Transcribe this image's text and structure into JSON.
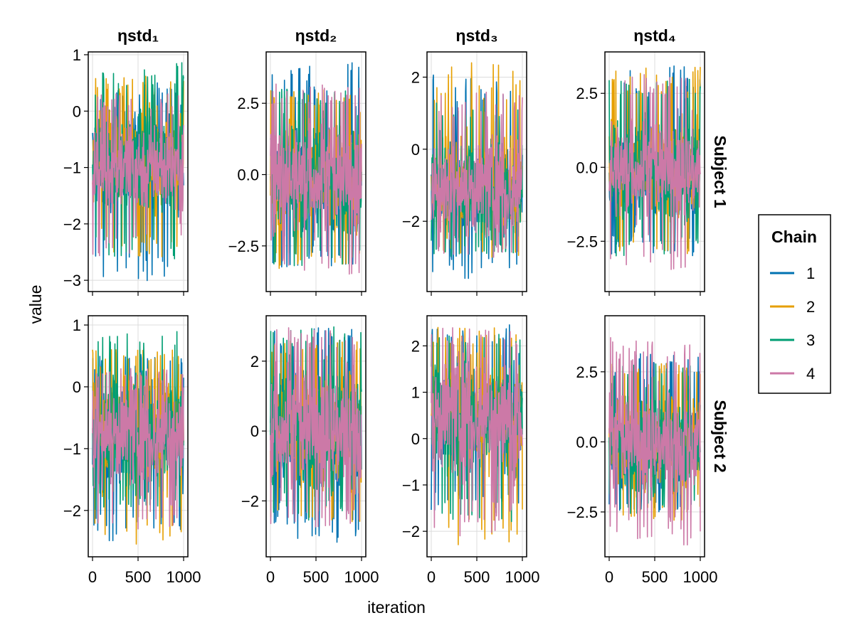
{
  "chart_data": {
    "type": "line",
    "xlabel": "iteration",
    "ylabel": "value",
    "column_titles": [
      "ηstd₁",
      "ηstd₂",
      "ηstd₃",
      "ηstd₄"
    ],
    "row_titles": [
      "Subject 1",
      "Subject 2"
    ],
    "legend": {
      "title": "Chain",
      "position": "right",
      "entries": [
        {
          "label": "1",
          "color": "#0072b2"
        },
        {
          "label": "2",
          "color": "#e69f00"
        },
        {
          "label": "3",
          "color": "#009e73"
        },
        {
          "label": "4",
          "color": "#cc79a7"
        }
      ]
    },
    "x_range": [
      0,
      1000
    ],
    "x_ticks": [
      0,
      500,
      1000
    ],
    "x_tick_labels": [
      "0",
      "500",
      "1000"
    ],
    "grid": true,
    "panels": [
      {
        "row": 0,
        "col": 0,
        "ylim": [
          -3.2,
          1.05
        ],
        "yticks": [
          -3,
          -2,
          -1,
          0,
          1
        ],
        "ytick_labels": [
          "−3",
          "−2",
          "−1",
          "0",
          "1"
        ],
        "series": [
          {
            "chain": "1",
            "mean": -1.05,
            "lo": -1.72,
            "hi": 0.0,
            "min": -3.02,
            "max": 0.56
          },
          {
            "chain": "2",
            "mean": -1.0,
            "lo": -1.72,
            "hi": 0.0,
            "min": -2.62,
            "max": 0.62
          },
          {
            "chain": "3",
            "mean": -1.0,
            "lo": -1.72,
            "hi": 0.0,
            "min": -2.62,
            "max": 0.86
          },
          {
            "chain": "4",
            "mean": -1.1,
            "lo": -1.72,
            "hi": -0.25,
            "min": -2.62,
            "max": 0.35
          }
        ]
      },
      {
        "row": 0,
        "col": 1,
        "ylim": [
          -4.1,
          4.3
        ],
        "yticks": [
          -2.5,
          0.0,
          2.5
        ],
        "ytick_labels": [
          "−2.5",
          "0.0",
          "2.5"
        ],
        "series": [
          {
            "chain": "1",
            "mean": 0.0,
            "lo": -2.0,
            "hi": 1.8,
            "min": -3.3,
            "max": 4.0
          },
          {
            "chain": "2",
            "mean": 0.0,
            "lo": -2.0,
            "hi": 1.8,
            "min": -3.3,
            "max": 3.0
          },
          {
            "chain": "3",
            "mean": 0.0,
            "lo": -2.0,
            "hi": 1.8,
            "min": -3.2,
            "max": 3.0
          },
          {
            "chain": "4",
            "mean": 0.0,
            "lo": -1.9,
            "hi": 1.6,
            "min": -3.7,
            "max": 3.2
          }
        ]
      },
      {
        "row": 0,
        "col": 2,
        "ylim": [
          -3.95,
          2.7
        ],
        "yticks": [
          -2,
          0,
          2
        ],
        "ytick_labels": [
          "−2",
          "0",
          "2"
        ],
        "series": [
          {
            "chain": "1",
            "mean": -1.0,
            "lo": -2.3,
            "hi": 0.1,
            "min": -3.6,
            "max": 2.3
          },
          {
            "chain": "2",
            "mean": -1.0,
            "lo": -2.3,
            "hi": 0.1,
            "min": -3.0,
            "max": 2.4
          },
          {
            "chain": "3",
            "mean": -1.0,
            "lo": -2.3,
            "hi": 0.1,
            "min": -3.0,
            "max": 1.3
          },
          {
            "chain": "4",
            "mean": -1.0,
            "lo": -2.3,
            "hi": 0.1,
            "min": -3.0,
            "max": 1.6
          }
        ]
      },
      {
        "row": 0,
        "col": 3,
        "ylim": [
          -4.2,
          3.9
        ],
        "yticks": [
          -2.5,
          0.0,
          2.5
        ],
        "ytick_labels": [
          "−2.5",
          "0.0",
          "2.5"
        ],
        "series": [
          {
            "chain": "1",
            "mean": 0.0,
            "lo": -1.6,
            "hi": 1.5,
            "min": -3.0,
            "max": 3.5
          },
          {
            "chain": "2",
            "mean": 0.0,
            "lo": -1.6,
            "hi": 1.5,
            "min": -3.0,
            "max": 3.4
          },
          {
            "chain": "3",
            "mean": 0.0,
            "lo": -1.6,
            "hi": 1.5,
            "min": -3.0,
            "max": 3.0
          },
          {
            "chain": "4",
            "mean": 0.0,
            "lo": -1.6,
            "hi": 1.4,
            "min": -3.7,
            "max": 3.2
          }
        ]
      },
      {
        "row": 1,
        "col": 0,
        "ylim": [
          -2.75,
          1.15
        ],
        "yticks": [
          -2,
          -1,
          0,
          1
        ],
        "ytick_labels": [
          "−2",
          "−1",
          "0",
          "1"
        ],
        "series": [
          {
            "chain": "1",
            "mean": -0.75,
            "lo": -1.6,
            "hi": 0.2,
            "min": -2.5,
            "max": 0.6
          },
          {
            "chain": "2",
            "mean": -0.7,
            "lo": -1.6,
            "hi": 0.25,
            "min": -2.55,
            "max": 0.6
          },
          {
            "chain": "3",
            "mean": -0.7,
            "lo": -1.6,
            "hi": 0.2,
            "min": -2.0,
            "max": 0.95
          },
          {
            "chain": "4",
            "mean": -0.75,
            "lo": -1.5,
            "hi": 0.0,
            "min": -2.3,
            "max": 0.3
          }
        ]
      },
      {
        "row": 1,
        "col": 1,
        "ylim": [
          -3.6,
          3.3
        ],
        "yticks": [
          -2,
          0,
          2
        ],
        "ytick_labels": [
          "−2",
          "0",
          "2"
        ],
        "series": [
          {
            "chain": "1",
            "mean": 0.0,
            "lo": -1.6,
            "hi": 1.8,
            "min": -3.2,
            "max": 3.0
          },
          {
            "chain": "2",
            "mean": 0.0,
            "lo": -1.6,
            "hi": 1.8,
            "min": -2.6,
            "max": 2.6
          },
          {
            "chain": "3",
            "mean": 0.0,
            "lo": -1.6,
            "hi": 1.8,
            "min": -2.6,
            "max": 3.0
          },
          {
            "chain": "4",
            "mean": 0.0,
            "lo": -1.6,
            "hi": 1.8,
            "min": -2.9,
            "max": 3.0
          }
        ]
      },
      {
        "row": 1,
        "col": 2,
        "ylim": [
          -2.55,
          2.65
        ],
        "yticks": [
          -2,
          -1,
          0,
          1,
          2
        ],
        "ytick_labels": [
          "−2",
          "−1",
          "0",
          "1",
          "2"
        ],
        "series": [
          {
            "chain": "1",
            "mean": 0.4,
            "lo": -0.6,
            "hi": 1.6,
            "min": -1.55,
            "max": 2.5
          },
          {
            "chain": "2",
            "mean": 0.4,
            "lo": -0.6,
            "hi": 1.6,
            "min": -2.3,
            "max": 2.4
          },
          {
            "chain": "3",
            "mean": 0.4,
            "lo": -0.6,
            "hi": 1.6,
            "min": -1.95,
            "max": 2.3
          },
          {
            "chain": "4",
            "mean": 0.4,
            "lo": -0.6,
            "hi": 1.6,
            "min": -2.1,
            "max": 2.4
          }
        ]
      },
      {
        "row": 1,
        "col": 3,
        "ylim": [
          -4.1,
          4.5
        ],
        "yticks": [
          -2.5,
          0.0,
          2.5
        ],
        "ytick_labels": [
          "−2.5",
          "0.0",
          "2.5"
        ],
        "series": [
          {
            "chain": "1",
            "mean": 0.0,
            "lo": -1.7,
            "hi": 1.7,
            "min": -2.5,
            "max": 3.2
          },
          {
            "chain": "2",
            "mean": 0.0,
            "lo": -1.7,
            "hi": 1.7,
            "min": -2.8,
            "max": 2.8
          },
          {
            "chain": "3",
            "mean": 0.0,
            "lo": -1.7,
            "hi": 1.7,
            "min": -2.6,
            "max": 2.8
          },
          {
            "chain": "4",
            "mean": 0.0,
            "lo": -1.6,
            "hi": 1.6,
            "min": -3.7,
            "max": 3.8
          }
        ]
      }
    ]
  }
}
